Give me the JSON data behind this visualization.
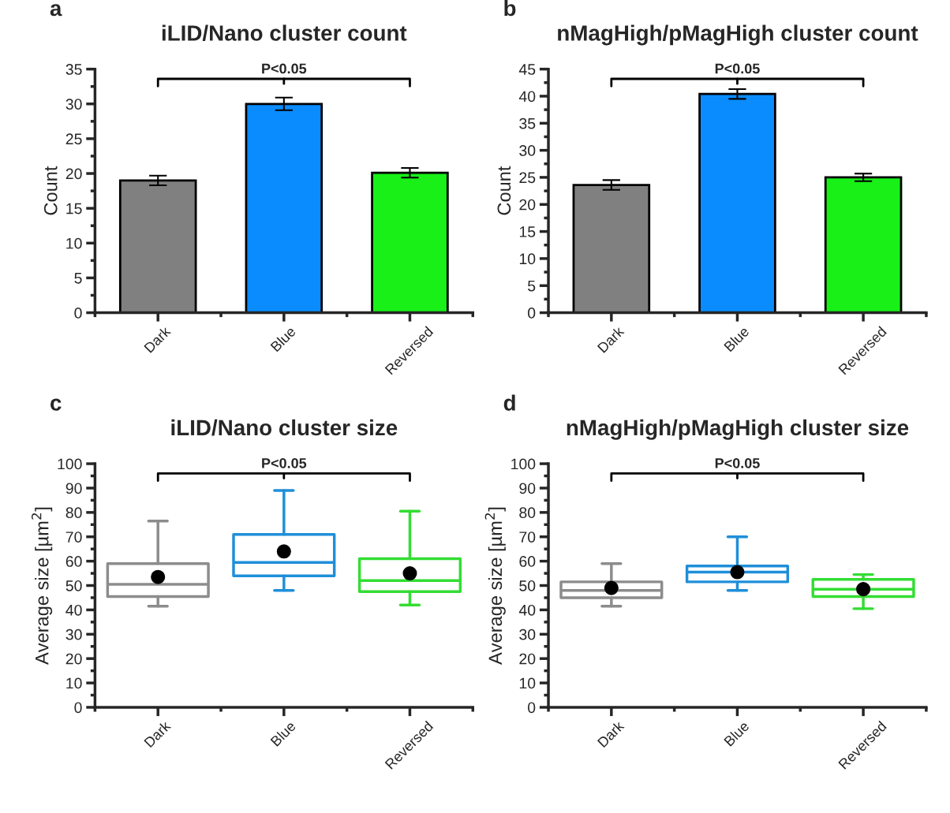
{
  "chart_data": [
    {
      "type": "bar",
      "title": "iLID/Nano cluster count",
      "ylabel": "Count",
      "categories": [
        "Dark",
        "Blue",
        "Reversed"
      ],
      "values": [
        19.0,
        30.0,
        20.1
      ],
      "errors": [
        0.7,
        0.9,
        0.7
      ],
      "colors": [
        "#808080",
        "#0a8cff",
        "#18f018"
      ],
      "ylim": [
        0,
        35
      ],
      "yticks": [
        0,
        5,
        10,
        15,
        20,
        25,
        30,
        35
      ],
      "grid": false,
      "legend": false,
      "annotations": [
        "a",
        "P<0.05"
      ]
    },
    {
      "type": "bar",
      "title": "nMagHigh/pMagHigh cluster count",
      "ylabel": "Count",
      "categories": [
        "Dark",
        "Blue",
        "Reversed"
      ],
      "values": [
        23.6,
        40.4,
        25.0
      ],
      "errors": [
        0.9,
        0.9,
        0.7
      ],
      "colors": [
        "#808080",
        "#0a8cff",
        "#18f018"
      ],
      "ylim": [
        0,
        45
      ],
      "yticks": [
        0,
        5,
        10,
        15,
        20,
        25,
        30,
        35,
        40,
        45
      ],
      "grid": false,
      "legend": false,
      "annotations": [
        "b",
        "P<0.05"
      ]
    },
    {
      "type": "box",
      "title": "iLID/Nano cluster size",
      "ylabel": "Average size [µm$^{2}$]",
      "categories": [
        "Dark",
        "Blue",
        "Reversed"
      ],
      "colors": [
        "#8c8c8c",
        "#1f8fd9",
        "#33dd33"
      ],
      "boxes": [
        {
          "low": 41.5,
          "q1": 45.5,
          "median": 50.5,
          "q3": 59,
          "high": 76.5,
          "mean": 53.5
        },
        {
          "low": 48,
          "q1": 54,
          "median": 59.5,
          "q3": 71,
          "high": 89,
          "mean": 64
        },
        {
          "low": 42,
          "q1": 47.5,
          "median": 52,
          "q3": 61,
          "high": 80.5,
          "mean": 55
        }
      ],
      "ylim": [
        0,
        100
      ],
      "yticks": [
        0,
        10,
        20,
        30,
        40,
        50,
        60,
        70,
        80,
        90,
        100
      ],
      "grid": false,
      "legend": false,
      "annotations": [
        "c",
        "P<0.05"
      ]
    },
    {
      "type": "box",
      "title": "nMagHigh/pMagHigh cluster size",
      "ylabel": "Average size [µm$^{2}$]",
      "categories": [
        "Dark",
        "Blue",
        "Reversed"
      ],
      "colors": [
        "#8c8c8c",
        "#1f8fd9",
        "#33dd33"
      ],
      "boxes": [
        {
          "low": 41.5,
          "q1": 45,
          "median": 48,
          "q3": 51.5,
          "high": 59,
          "mean": 49
        },
        {
          "low": 48,
          "q1": 51.5,
          "median": 55.5,
          "q3": 58,
          "high": 70,
          "mean": 55.5
        },
        {
          "low": 40.5,
          "q1": 45.5,
          "median": 48.5,
          "q3": 52.5,
          "high": 54.5,
          "mean": 48.5
        }
      ],
      "ylim": [
        0,
        100
      ],
      "yticks": [
        0,
        10,
        20,
        30,
        40,
        50,
        60,
        70,
        80,
        90,
        100
      ],
      "grid": false,
      "legend": false,
      "annotations": [
        "d",
        "P<0.05"
      ]
    }
  ]
}
